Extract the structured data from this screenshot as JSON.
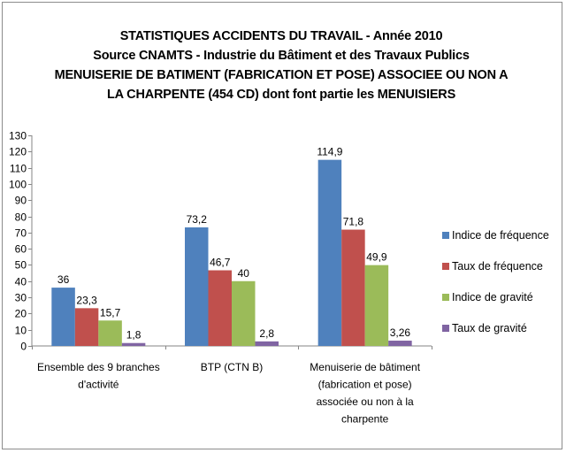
{
  "chart_data": {
    "type": "bar",
    "title_lines": [
      "STATISTIQUES ACCIDENTS DU TRAVAIL - Année 2010",
      "Source CNAMTS - Industrie du Bâtiment et des Travaux Publics",
      "MENUISERIE DE BATIMENT (FABRICATION ET POSE) ASSOCIEE OU NON A",
      "LA CHARPENTE (454 CD) dont font partie les MENUISIERS"
    ],
    "categories": [
      [
        "Ensemble des 9 branches",
        "d'activité"
      ],
      [
        "BTP (CTN B)"
      ],
      [
        "Menuiserie de bâtiment",
        "(fabrication et pose)",
        "associée ou non à la",
        "charpente"
      ]
    ],
    "series": [
      {
        "name": "Indice de fréquence",
        "color": "#4F81BD",
        "values": [
          36,
          73.2,
          114.9
        ],
        "labels": [
          "36",
          "73,2",
          "114,9"
        ]
      },
      {
        "name": "Taux de fréquence",
        "color": "#C0504D",
        "values": [
          23.3,
          46.7,
          71.8
        ],
        "labels": [
          "23,3",
          "46,7",
          "71,8"
        ]
      },
      {
        "name": "Indice de gravité",
        "color": "#9BBB59",
        "values": [
          15.7,
          40,
          49.9
        ],
        "labels": [
          "15,7",
          "40",
          "49,9"
        ]
      },
      {
        "name": "Taux de gravité",
        "color": "#8064A2",
        "values": [
          1.8,
          2.8,
          3.26
        ],
        "labels": [
          "1,8",
          "2,8",
          "3,26"
        ]
      }
    ],
    "ylim": [
      0,
      130
    ],
    "yticks": [
      0,
      10,
      20,
      30,
      40,
      50,
      60,
      70,
      80,
      90,
      100,
      110,
      120,
      130
    ],
    "xlabel": "",
    "ylabel": "",
    "legend": "right",
    "grid": false
  }
}
